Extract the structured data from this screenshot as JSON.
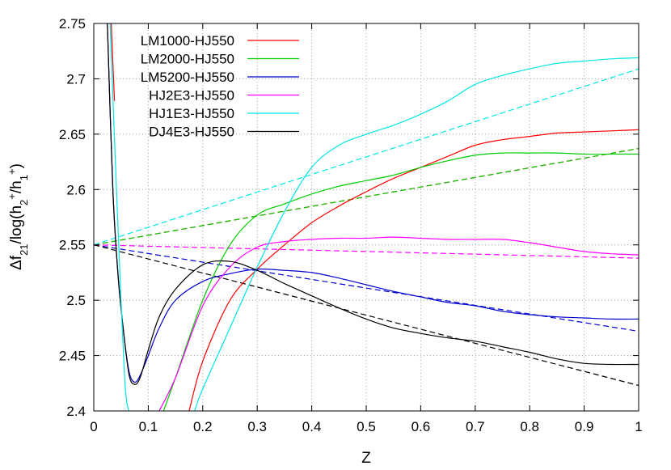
{
  "chart_data": {
    "type": "line",
    "title": "",
    "xlabel": "Z",
    "ylabel": "Δf21/log(h2+/h1+)",
    "xlim": [
      0,
      1
    ],
    "ylim": [
      2.4,
      2.75
    ],
    "xticks": [
      0,
      0.1,
      0.2,
      0.3,
      0.4,
      0.5,
      0.6,
      0.7,
      0.8,
      0.9,
      1
    ],
    "xtick_labels": [
      "0",
      "0.1",
      "0.2",
      "0.3",
      "0.4",
      "0.5",
      "0.6",
      "0.7",
      "0.8",
      "0.9",
      "1"
    ],
    "yticks": [
      2.4,
      2.45,
      2.5,
      2.55,
      2.6,
      2.65,
      2.7,
      2.75
    ],
    "ytick_labels": [
      "2.4",
      "2.45",
      "2.5",
      "2.55",
      "2.6",
      "2.65",
      "2.7",
      "2.75"
    ],
    "grid": true,
    "legend_position": "top-left",
    "series": [
      {
        "name": "LM1000-HJ550",
        "color": "#ff0000",
        "x": [
          0.175,
          0.2,
          0.25,
          0.3,
          0.35,
          0.4,
          0.45,
          0.5,
          0.55,
          0.6,
          0.65,
          0.7,
          0.75,
          0.8,
          0.85,
          0.9,
          0.95,
          1.0
        ],
        "y": [
          2.4,
          2.445,
          2.5,
          2.528,
          2.55,
          2.57,
          2.585,
          2.598,
          2.61,
          2.62,
          2.63,
          2.64,
          2.645,
          2.648,
          2.651,
          2.652,
          2.653,
          2.654
        ]
      },
      {
        "name": "LM2000-HJ550",
        "color": "#00cc00",
        "x": [
          0.128,
          0.15,
          0.2,
          0.25,
          0.3,
          0.35,
          0.4,
          0.45,
          0.5,
          0.55,
          0.6,
          0.65,
          0.7,
          0.75,
          0.8,
          0.85,
          0.9,
          0.95,
          1.0
        ],
        "y": [
          2.4,
          2.43,
          2.5,
          2.55,
          2.577,
          2.587,
          2.596,
          2.603,
          2.608,
          2.613,
          2.62,
          2.626,
          2.631,
          2.633,
          2.633,
          2.633,
          2.632,
          2.632,
          2.632
        ]
      },
      {
        "name": "LM5200-HJ550",
        "color": "#0000cc",
        "x": [
          0.025,
          0.035,
          0.045,
          0.055,
          0.065,
          0.075,
          0.085,
          0.1,
          0.12,
          0.15,
          0.2,
          0.25,
          0.3,
          0.35,
          0.4,
          0.45,
          0.5,
          0.55,
          0.6,
          0.65,
          0.7,
          0.75,
          0.8,
          0.85,
          0.9,
          0.95,
          1.0
        ],
        "y": [
          2.75,
          2.6,
          2.52,
          2.47,
          2.435,
          2.426,
          2.432,
          2.45,
          2.475,
          2.5,
          2.517,
          2.524,
          2.528,
          2.527,
          2.525,
          2.52,
          2.514,
          2.508,
          2.503,
          2.498,
          2.495,
          2.49,
          2.487,
          2.485,
          2.484,
          2.483,
          2.483
        ]
      },
      {
        "name": "HJ2E3-HJ550",
        "color": "#ff00ff",
        "x": [
          0.12,
          0.15,
          0.2,
          0.25,
          0.3,
          0.35,
          0.4,
          0.45,
          0.5,
          0.55,
          0.6,
          0.65,
          0.7,
          0.75,
          0.8,
          0.85,
          0.9,
          0.95,
          1.0
        ],
        "y": [
          2.4,
          2.43,
          2.495,
          2.53,
          2.548,
          2.553,
          2.555,
          2.556,
          2.556,
          2.557,
          2.556,
          2.555,
          2.555,
          2.555,
          2.552,
          2.548,
          2.544,
          2.542,
          2.541
        ]
      },
      {
        "name": "HJ1E3-HJ550",
        "color": "#00e5e5",
        "x": [
          0.185,
          0.2,
          0.25,
          0.3,
          0.35,
          0.4,
          0.45,
          0.5,
          0.55,
          0.6,
          0.65,
          0.7,
          0.75,
          0.8,
          0.85,
          0.9,
          0.95,
          1.0
        ],
        "y": [
          2.4,
          2.42,
          2.475,
          2.53,
          2.58,
          2.62,
          2.64,
          2.65,
          2.658,
          2.668,
          2.68,
          2.695,
          2.703,
          2.709,
          2.714,
          2.716,
          2.718,
          2.719
        ]
      },
      {
        "name": "DJ4E3-HJ550",
        "color": "#000000",
        "x": [
          0.025,
          0.035,
          0.045,
          0.055,
          0.065,
          0.075,
          0.085,
          0.1,
          0.12,
          0.15,
          0.2,
          0.25,
          0.3,
          0.35,
          0.4,
          0.45,
          0.5,
          0.55,
          0.6,
          0.65,
          0.7,
          0.75,
          0.8,
          0.85,
          0.9,
          0.95,
          1.0
        ],
        "y": [
          2.75,
          2.6,
          2.52,
          2.47,
          2.432,
          2.424,
          2.43,
          2.455,
          2.485,
          2.51,
          2.532,
          2.535,
          2.527,
          2.515,
          2.504,
          2.493,
          2.483,
          2.475,
          2.47,
          2.466,
          2.463,
          2.458,
          2.453,
          2.447,
          2.443,
          2.442,
          2.442
        ]
      },
      {
        "name": "",
        "color": "#ff0000",
        "dashed": true,
        "x": [
          0,
          1
        ],
        "y": [
          2.55,
          2.637
        ]
      },
      {
        "name": "",
        "color": "#00cc00",
        "dashed": true,
        "x": [
          0,
          1
        ],
        "y": [
          2.55,
          2.637
        ]
      },
      {
        "name": "",
        "color": "#0000cc",
        "dashed": true,
        "x": [
          0,
          1
        ],
        "y": [
          2.55,
          2.472
        ]
      },
      {
        "name": "",
        "color": "#ff00ff",
        "dashed": true,
        "x": [
          0,
          1
        ],
        "y": [
          2.55,
          2.538
        ]
      },
      {
        "name": "",
        "color": "#00e5e5",
        "dashed": true,
        "x": [
          0,
          1
        ],
        "y": [
          2.55,
          2.709
        ]
      },
      {
        "name": "",
        "color": "#000000",
        "dashed": true,
        "x": [
          0,
          1
        ],
        "y": [
          2.55,
          2.423
        ]
      },
      {
        "name": "",
        "color": "#00e5e5",
        "x": [
          0.03,
          0.04,
          0.05,
          0.058,
          0.064
        ],
        "y": [
          2.75,
          2.62,
          2.5,
          2.42,
          2.4
        ]
      },
      {
        "name": "",
        "color": "#ff0000",
        "x": [
          0.032,
          0.038
        ],
        "y": [
          2.75,
          2.68
        ]
      }
    ]
  }
}
